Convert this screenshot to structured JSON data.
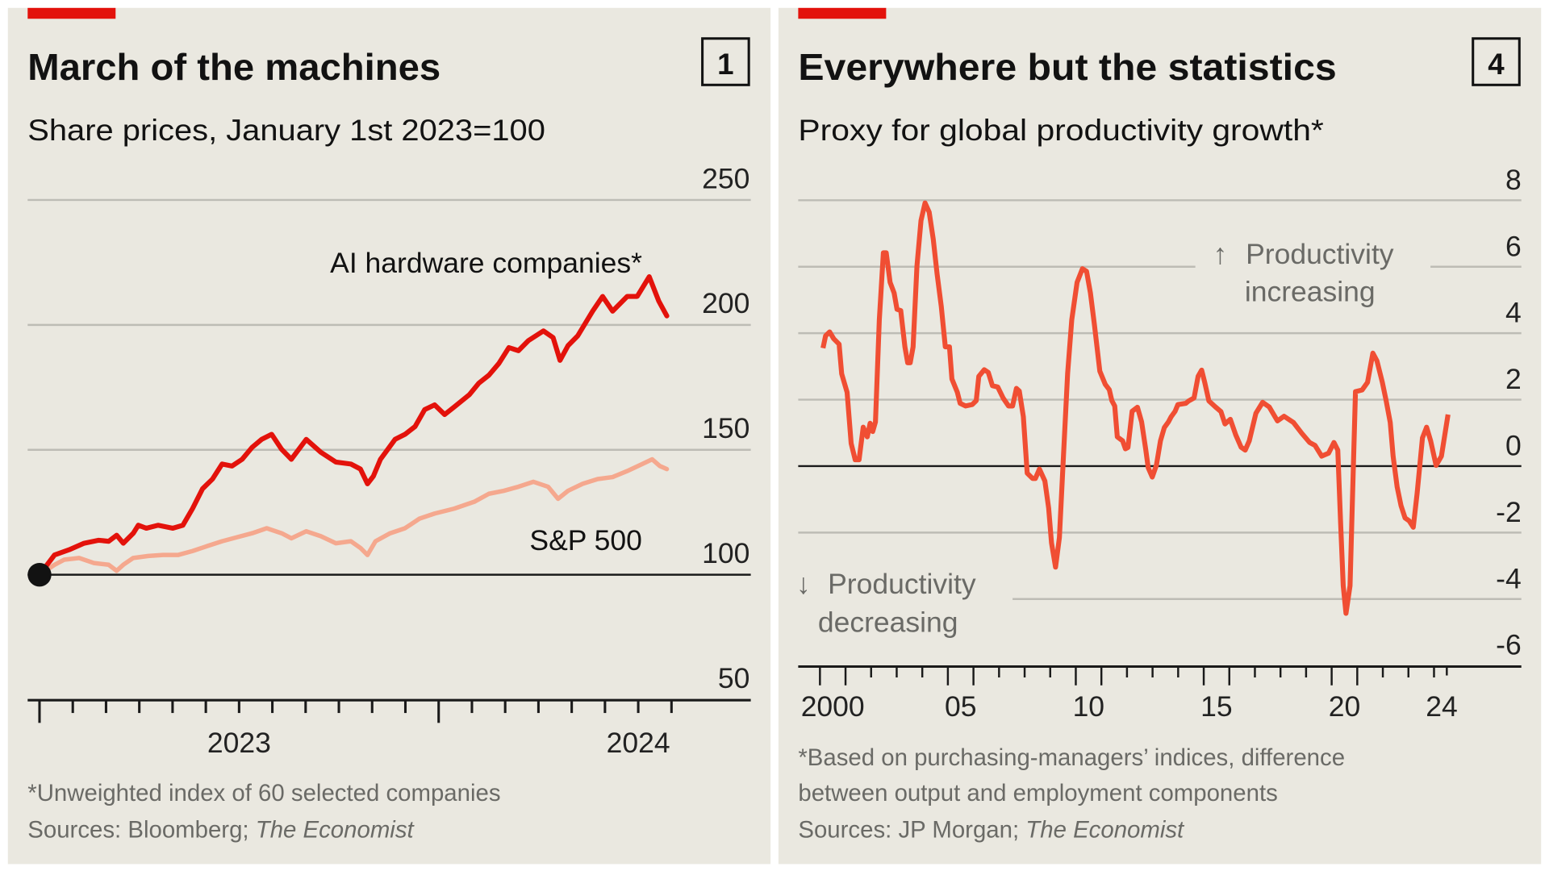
{
  "colors": {
    "background": "#eae8e0",
    "accent_bar": "#e3120b",
    "ai_line": "#e3120b",
    "sp_line": "#f5a88e",
    "productivity_line": "#f04e33"
  },
  "panels": [
    {
      "title": "March of the machines",
      "number": "1",
      "subtitle": "Share prices, January 1st 2023=100",
      "series_labels": {
        "ai": "AI hardware companies*",
        "sp": "S&P 500"
      },
      "footnote": "*Unweighted index of 60 selected companies",
      "sources_prefix": "Sources: Bloomberg; ",
      "sources_italic": "The Economist"
    },
    {
      "title": "Everywhere but the statistics",
      "number": "4",
      "subtitle": "Proxy for global productivity growth*",
      "annotation_up": {
        "arrow": "↑",
        "line1": "Productivity",
        "line2": "increasing"
      },
      "annotation_down": {
        "arrow": "↓",
        "line1": "Productivity",
        "line2": "decreasing"
      },
      "footnote_line1": "*Based on purchasing-managers’ indices, difference",
      "footnote_line2": "between output and employment components",
      "sources_prefix": "Sources: JP Morgan; ",
      "sources_italic": "The Economist"
    }
  ],
  "chart_data": [
    {
      "type": "line",
      "title": "March of the machines",
      "subtitle": "Share prices, January 1st 2023=100",
      "xlabel": "",
      "ylabel": "",
      "x_unit": "months since January 1st 2023",
      "xlim": [
        0,
        19
      ],
      "ylim": [
        50,
        250
      ],
      "yticks": [
        "50",
        "100",
        "150",
        "200",
        "250"
      ],
      "xtick_labels": [
        {
          "label": "2023",
          "at": 6
        },
        {
          "label": "2024",
          "at": 18
        }
      ],
      "grid": true,
      "series": [
        {
          "name": "AI hardware companies*",
          "x": [
            0,
            0.45,
            0.89,
            1.34,
            1.78,
            2.08,
            2.32,
            2.52,
            2.82,
            2.97,
            3.21,
            3.56,
            4.01,
            4.31,
            4.6,
            4.9,
            5.2,
            5.49,
            5.79,
            6.09,
            6.39,
            6.68,
            6.98,
            7.28,
            7.57,
            8.02,
            8.46,
            8.91,
            9.36,
            9.65,
            9.86,
            10.04,
            10.25,
            10.69,
            10.99,
            11.29,
            11.58,
            11.88,
            12.18,
            12.47,
            12.92,
            13.21,
            13.51,
            13.81,
            14.11,
            14.4,
            14.7,
            15.15,
            15.44,
            15.65,
            15.89,
            16.18,
            16.63,
            16.93,
            17.23,
            17.67,
            17.97,
            18.33,
            18.62,
            18.86
          ],
          "values": [
            100,
            107.9,
            110,
            112.6,
            113.8,
            113.4,
            115.8,
            112.6,
            116.6,
            119.8,
            118.6,
            119.8,
            118.6,
            119.8,
            126.5,
            134.4,
            138.3,
            144.3,
            143.5,
            146.2,
            151,
            154.2,
            156.2,
            150.2,
            146.2,
            154.2,
            149,
            145.1,
            144.3,
            142.3,
            136.4,
            139.5,
            146.2,
            154.2,
            156.2,
            159.3,
            166.1,
            168,
            164.1,
            167.2,
            172,
            176.7,
            179.9,
            184.6,
            190.9,
            189.7,
            193.7,
            197.6,
            194.9,
            185.8,
            191.7,
            195.6,
            205.5,
            211.4,
            205.5,
            211.4,
            211.4,
            219.3,
            209.5,
            203.6
          ]
        },
        {
          "name": "S&P 500",
          "x": [
            0,
            0.45,
            0.74,
            1.19,
            1.63,
            2.08,
            2.32,
            2.52,
            2.82,
            3.27,
            3.71,
            4.16,
            4.6,
            5.05,
            5.49,
            5.94,
            6.39,
            6.83,
            7.28,
            7.57,
            8.02,
            8.46,
            8.91,
            9.36,
            9.65,
            9.86,
            10.1,
            10.54,
            10.99,
            11.43,
            11.88,
            12.47,
            13.07,
            13.51,
            13.96,
            14.4,
            14.85,
            15.29,
            15.59,
            15.89,
            16.33,
            16.78,
            17.23,
            17.67,
            18.12,
            18.42,
            18.65,
            18.86
          ],
          "values": [
            100,
            104,
            106,
            106.7,
            104.7,
            104,
            101.6,
            104,
            106.7,
            107.5,
            107.9,
            107.9,
            109.5,
            111.5,
            113.4,
            115,
            116.6,
            118.6,
            116.6,
            114.6,
            117.4,
            115.4,
            112.6,
            113.4,
            110.7,
            107.9,
            113.4,
            116.6,
            118.6,
            122.5,
            124.5,
            126.5,
            129.2,
            132.4,
            133.6,
            135.2,
            137.2,
            135.2,
            130.4,
            133.6,
            136.4,
            138.3,
            139.1,
            141.5,
            144.3,
            146.2,
            143.5,
            142.3
          ]
        }
      ]
    },
    {
      "type": "line",
      "title": "Everywhere but the statistics",
      "subtitle": "Proxy for global productivity growth*",
      "xlabel": "",
      "ylabel": "",
      "xlim": [
        2000,
        2025
      ],
      "ylim": [
        -6,
        8
      ],
      "yticks": [
        "-6",
        "-4",
        "-2",
        "0",
        "2",
        "4",
        "6",
        "8"
      ],
      "xtick_labels": [
        {
          "label": "2000",
          "at": 2000.5
        },
        {
          "label": "05",
          "at": 2005.5
        },
        {
          "label": "10",
          "at": 2010.5
        },
        {
          "label": "15",
          "at": 2015.5
        },
        {
          "label": "20",
          "at": 2020.5
        },
        {
          "label": "24",
          "at": 2024.3
        }
      ],
      "grid": true,
      "series": [
        {
          "name": "Proxy for global productivity growth",
          "x": [
            2000.12,
            2000.22,
            2000.38,
            2000.54,
            2000.75,
            2000.85,
            2001.06,
            2001.22,
            2001.38,
            2001.53,
            2001.69,
            2001.85,
            2001.96,
            2002.06,
            2002.17,
            2002.32,
            2002.48,
            2002.59,
            2002.74,
            2002.9,
            2003.01,
            2003.16,
            2003.32,
            2003.43,
            2003.53,
            2003.64,
            2003.79,
            2003.95,
            2004.11,
            2004.27,
            2004.43,
            2004.58,
            2004.74,
            2004.9,
            2005.06,
            2005.16,
            2005.37,
            2005.48,
            2005.69,
            2005.95,
            2006.11,
            2006.21,
            2006.42,
            2006.58,
            2006.74,
            2006.95,
            2007.16,
            2007.37,
            2007.53,
            2007.68,
            2007.79,
            2007.95,
            2008.1,
            2008.31,
            2008.42,
            2008.58,
            2008.79,
            2008.94,
            2009.05,
            2009.21,
            2009.36,
            2009.52,
            2009.68,
            2009.84,
            2010.05,
            2010.26,
            2010.42,
            2010.57,
            2010.73,
            2010.94,
            2011.15,
            2011.31,
            2011.41,
            2011.52,
            2011.62,
            2011.83,
            2011.94,
            2012.04,
            2012.2,
            2012.41,
            2012.57,
            2012.73,
            2012.83,
            2012.99,
            2013.15,
            2013.31,
            2013.46,
            2013.62,
            2013.73,
            2013.88,
            2013.99,
            2014.3,
            2014.41,
            2014.62,
            2014.78,
            2014.92,
            2015.04,
            2015.2,
            2015.46,
            2015.67,
            2015.83,
            2016.04,
            2016.25,
            2016.46,
            2016.62,
            2016.78,
            2017.04,
            2017.3,
            2017.56,
            2017.88,
            2018.14,
            2018.51,
            2018.83,
            2019.14,
            2019.35,
            2019.61,
            2019.88,
            2020.09,
            2020.24,
            2020.35,
            2020.45,
            2020.56,
            2020.72,
            2020.82,
            2020.93,
            2021.19,
            2021.4,
            2021.61,
            2021.77,
            2021.98,
            2022.13,
            2022.29,
            2022.4,
            2022.56,
            2022.71,
            2022.87,
            2023.03,
            2023.19,
            2023.34,
            2023.55,
            2023.71,
            2023.87,
            2024.08,
            2024.29,
            2024.55
          ],
          "values": [
            3.55,
            3.92,
            4.04,
            3.83,
            3.67,
            2.78,
            2.22,
            0.68,
            0.19,
            0.19,
            1.17,
            0.88,
            1.29,
            1.04,
            1.33,
            4.4,
            6.42,
            6.42,
            5.53,
            5.21,
            4.72,
            4.68,
            3.59,
            3.11,
            3.11,
            3.59,
            6.02,
            7.39,
            7.92,
            7.64,
            6.83,
            5.78,
            4.81,
            3.59,
            3.59,
            2.62,
            2.22,
            1.89,
            1.81,
            1.85,
            1.97,
            2.7,
            2.9,
            2.82,
            2.42,
            2.38,
            2.05,
            1.81,
            1.81,
            2.34,
            2.26,
            1.49,
            -0.21,
            -0.37,
            -0.37,
            -0.09,
            -0.45,
            -1.26,
            -2.31,
            -3.04,
            -2.15,
            0.36,
            2.78,
            4.4,
            5.53,
            5.94,
            5.86,
            5.21,
            4.24,
            2.86,
            2.46,
            2.3,
            1.97,
            1.81,
            0.88,
            0.76,
            0.52,
            0.56,
            1.65,
            1.77,
            1.33,
            0.52,
            -0.05,
            -0.33,
            0.03,
            0.76,
            1.16,
            1.33,
            1.49,
            1.65,
            1.85,
            1.89,
            1.96,
            2.05,
            2.7,
            2.89,
            2.52,
            1.96,
            1.78,
            1.64,
            1.27,
            1.41,
            0.94,
            0.57,
            0.48,
            0.76,
            1.59,
            1.92,
            1.78,
            1.36,
            1.5,
            1.31,
            0.99,
            0.71,
            0.62,
            0.3,
            0.39,
            0.71,
            0.48,
            -1.74,
            -3.6,
            -4.43,
            -3.6,
            -0.82,
            2.24,
            2.29,
            2.52,
            3.4,
            3.17,
            2.52,
            1.96,
            1.31,
            0.3,
            -0.63,
            -1.19,
            -1.56,
            -1.65,
            -1.84,
            -0.82,
            0.85,
            1.17,
            0.76,
            0.02,
            0.3,
            1.55
          ]
        }
      ]
    }
  ]
}
